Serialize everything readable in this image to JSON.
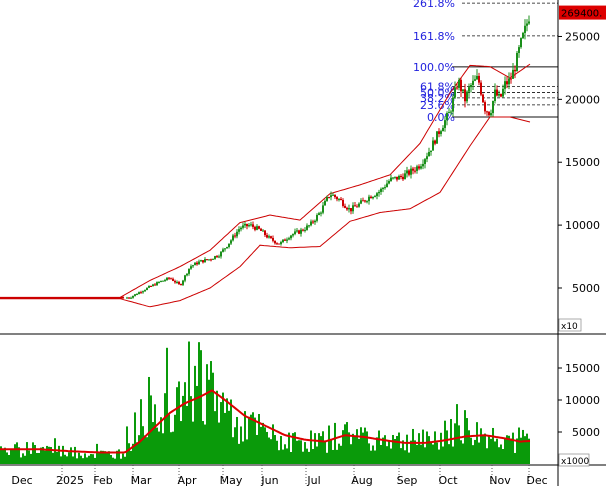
{
  "chart_data": [
    {
      "type": "candlestick",
      "panel": "price",
      "ylim": [
        1500,
        27900
      ],
      "yticks": [
        5000,
        10000,
        15000,
        20000,
        25000
      ],
      "y_tick_labels": [
        "5000",
        "10000",
        "15000",
        "20000",
        "25000"
      ],
      "y_unit_label": "x10",
      "last_price_label": "269400.",
      "colors": {
        "up": "#1a8f1a",
        "down": "#cc0000",
        "bands": "#cc0000",
        "fib_text": "#1f1fdd",
        "price_box": "#dd0000"
      },
      "fibonacci": [
        {
          "label": "261.8%",
          "value": 27650
        },
        {
          "label": "161.8%",
          "value": 25050
        },
        {
          "label": "100.0%",
          "value": 22580
        },
        {
          "label": "61.8%",
          "value": 21020
        },
        {
          "label": "50.0%",
          "value": 20550
        },
        {
          "label": "38.2%",
          "value": 20120
        },
        {
          "label": "23.6%",
          "value": 19560
        },
        {
          "label": "0.0%",
          "value": 18600
        }
      ],
      "close_path": [
        [
          0,
          4200
        ],
        [
          20,
          4200
        ],
        [
          40,
          4200
        ],
        [
          60,
          4200
        ],
        [
          80,
          4200
        ],
        [
          100,
          4200
        ],
        [
          120,
          4200
        ],
        [
          130,
          4250
        ],
        [
          140,
          4700
        ],
        [
          150,
          5100
        ],
        [
          160,
          5500
        ],
        [
          170,
          5800
        ],
        [
          180,
          5200
        ],
        [
          190,
          6700
        ],
        [
          200,
          7100
        ],
        [
          210,
          7300
        ],
        [
          220,
          7700
        ],
        [
          230,
          8700
        ],
        [
          240,
          9800
        ],
        [
          250,
          10000
        ],
        [
          260,
          9600
        ],
        [
          270,
          8900
        ],
        [
          280,
          8500
        ],
        [
          290,
          9200
        ],
        [
          300,
          9500
        ],
        [
          310,
          10000
        ],
        [
          320,
          11000
        ],
        [
          330,
          12500
        ],
        [
          340,
          12000
        ],
        [
          350,
          11200
        ],
        [
          360,
          11700
        ],
        [
          370,
          12300
        ],
        [
          380,
          12700
        ],
        [
          390,
          13600
        ],
        [
          400,
          13800
        ],
        [
          410,
          14200
        ],
        [
          420,
          14800
        ],
        [
          430,
          16000
        ],
        [
          440,
          17600
        ],
        [
          450,
          19000
        ],
        [
          458,
          21500
        ],
        [
          465,
          20000
        ],
        [
          470,
          21000
        ],
        [
          478,
          21700
        ],
        [
          485,
          19300
        ],
        [
          490,
          18900
        ],
        [
          495,
          20500
        ],
        [
          500,
          20000
        ],
        [
          505,
          21200
        ],
        [
          510,
          21500
        ],
        [
          515,
          22600
        ],
        [
          520,
          24200
        ],
        [
          525,
          25500
        ],
        [
          530,
          26900
        ]
      ],
      "upper_band_path": [
        [
          0,
          4250
        ],
        [
          120,
          4250
        ],
        [
          150,
          5600
        ],
        [
          180,
          6700
        ],
        [
          210,
          8000
        ],
        [
          240,
          10200
        ],
        [
          270,
          10800
        ],
        [
          300,
          10400
        ],
        [
          330,
          12500
        ],
        [
          360,
          13200
        ],
        [
          390,
          14000
        ],
        [
          420,
          16500
        ],
        [
          450,
          20500
        ],
        [
          470,
          22700
        ],
        [
          490,
          22600
        ],
        [
          510,
          21700
        ],
        [
          530,
          22800
        ]
      ],
      "lower_band_path": [
        [
          0,
          4150
        ],
        [
          120,
          4150
        ],
        [
          150,
          3500
        ],
        [
          180,
          4000
        ],
        [
          210,
          5000
        ],
        [
          240,
          6700
        ],
        [
          260,
          8400
        ],
        [
          290,
          8200
        ],
        [
          320,
          8300
        ],
        [
          350,
          10300
        ],
        [
          380,
          11000
        ],
        [
          410,
          11300
        ],
        [
          440,
          12600
        ],
        [
          470,
          16300
        ],
        [
          490,
          18600
        ],
        [
          510,
          18600
        ],
        [
          530,
          18200
        ]
      ]
    },
    {
      "type": "bar",
      "panel": "volume",
      "ylim": [
        0,
        20000
      ],
      "yticks": [
        5000,
        10000,
        15000
      ],
      "y_tick_labels": [
        "5000",
        "10000",
        "15000"
      ],
      "y_unit_label": "x1000",
      "colors": {
        "bars": "#0a9a0a",
        "ma": "#dd0000"
      },
      "volume_path": [
        [
          0,
          1800
        ],
        [
          30,
          2500
        ],
        [
          60,
          2000
        ],
        [
          90,
          1500
        ],
        [
          120,
          1500
        ],
        [
          130,
          3000
        ],
        [
          140,
          7500
        ],
        [
          150,
          9000
        ],
        [
          160,
          8000
        ],
        [
          170,
          10000
        ],
        [
          180,
          14000
        ],
        [
          190,
          13000
        ],
        [
          200,
          13500
        ],
        [
          210,
          12000
        ],
        [
          220,
          9000
        ],
        [
          240,
          6500
        ],
        [
          260,
          5000
        ],
        [
          280,
          3500
        ],
        [
          300,
          3500
        ],
        [
          320,
          3500
        ],
        [
          340,
          4500
        ],
        [
          360,
          4500
        ],
        [
          380,
          4000
        ],
        [
          400,
          3500
        ],
        [
          420,
          3500
        ],
        [
          440,
          4000
        ],
        [
          460,
          5000
        ],
        [
          480,
          4500
        ],
        [
          500,
          4000
        ],
        [
          520,
          3700
        ],
        [
          530,
          3800
        ]
      ],
      "ma_path": [
        [
          0,
          2300
        ],
        [
          40,
          2300
        ],
        [
          70,
          2000
        ],
        [
          100,
          1800
        ],
        [
          125,
          1800
        ],
        [
          140,
          3500
        ],
        [
          155,
          5800
        ],
        [
          170,
          8000
        ],
        [
          185,
          9500
        ],
        [
          200,
          10500
        ],
        [
          212,
          11500
        ],
        [
          225,
          10000
        ],
        [
          245,
          7500
        ],
        [
          265,
          6000
        ],
        [
          285,
          4500
        ],
        [
          305,
          3800
        ],
        [
          325,
          3500
        ],
        [
          345,
          4500
        ],
        [
          365,
          4200
        ],
        [
          385,
          3700
        ],
        [
          405,
          3300
        ],
        [
          425,
          3300
        ],
        [
          445,
          3700
        ],
        [
          465,
          4300
        ],
        [
          485,
          4500
        ],
        [
          505,
          4000
        ],
        [
          520,
          3500
        ],
        [
          530,
          3600
        ]
      ]
    }
  ],
  "x_axis": {
    "labels": [
      "Dec",
      "2025",
      "Feb",
      "Mar",
      "Apr",
      "May",
      "Jun",
      "Jul",
      "Aug",
      "Sep",
      "Oct",
      "Nov",
      "Dec"
    ]
  }
}
